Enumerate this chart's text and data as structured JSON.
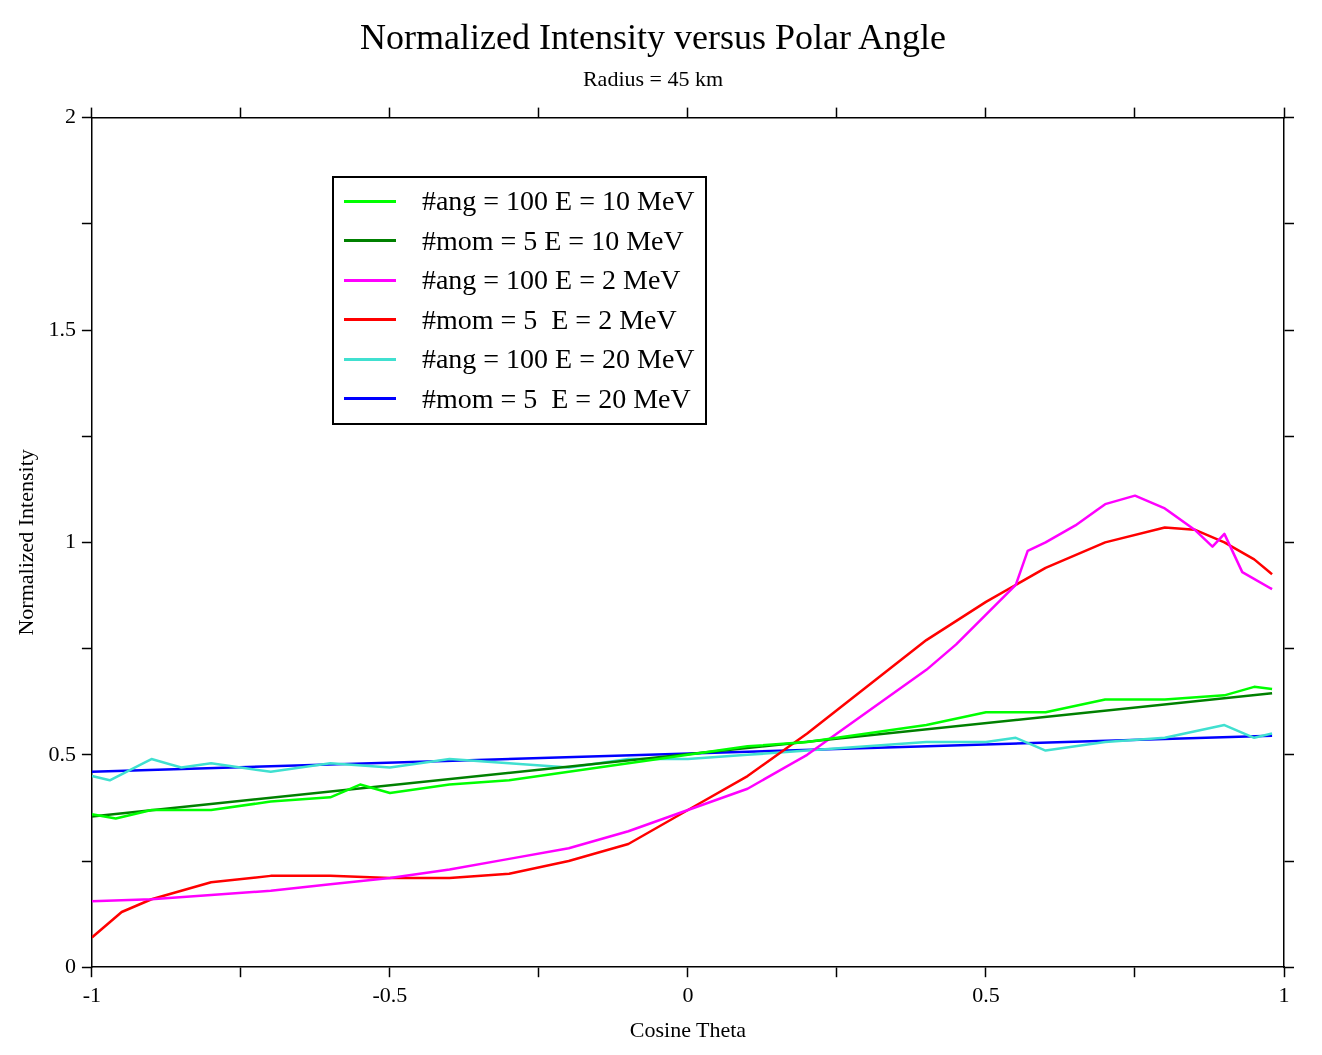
{
  "chart_data": {
    "type": "line",
    "title": "Normalized Intensity versus Polar Angle",
    "subtitle": "Radius = 45 km",
    "xlabel": "Cosine Theta",
    "ylabel": "Normalized Intensity",
    "xlim": [
      -1,
      1
    ],
    "ylim": [
      0,
      2
    ],
    "xticks": [
      -1,
      {
        "value": -0.75,
        "label": null
      },
      -0.5,
      {
        "value": -0.25,
        "label": null
      },
      0,
      {
        "value": 0.25,
        "label": null
      },
      0.5,
      {
        "value": 0.75,
        "label": null
      },
      1
    ],
    "yticks": [
      0,
      {
        "value": 0.25,
        "label": null
      },
      0.5,
      {
        "value": 0.75,
        "label": null
      },
      1,
      {
        "value": 1.25,
        "label": null
      },
      1.5,
      {
        "value": 1.75,
        "label": null
      },
      2
    ],
    "grid": false,
    "legend": "top left",
    "marker": "none",
    "line_style": "solid",
    "series": [
      {
        "name": "#ang = 100 E = 10 MeV",
        "color": "#00ff00",
        "x": [
          -1,
          -0.96,
          -0.9,
          -0.8,
          -0.7,
          -0.6,
          -0.55,
          -0.5,
          -0.4,
          -0.3,
          -0.2,
          -0.1,
          0,
          0.1,
          0.2,
          0.3,
          0.4,
          0.5,
          0.6,
          0.7,
          0.8,
          0.9,
          0.95,
          0.98
        ],
        "values": [
          0.36,
          0.35,
          0.37,
          0.37,
          0.39,
          0.4,
          0.43,
          0.41,
          0.43,
          0.44,
          0.46,
          0.48,
          0.5,
          0.52,
          0.53,
          0.55,
          0.57,
          0.6,
          0.6,
          0.63,
          0.63,
          0.64,
          0.66,
          0.655
        ]
      },
      {
        "name": "#mom = 5 E = 10 MeV",
        "color": "#008000",
        "x": [
          -1,
          0.98
        ],
        "values": [
          0.355,
          0.645
        ]
      },
      {
        "name": "#ang = 100 E = 2 MeV",
        "color": "#ff00ff",
        "x": [
          -1,
          -0.9,
          -0.8,
          -0.7,
          -0.6,
          -0.5,
          -0.4,
          -0.3,
          -0.2,
          -0.1,
          0,
          0.1,
          0.2,
          0.3,
          0.4,
          0.45,
          0.5,
          0.55,
          0.57,
          0.6,
          0.65,
          0.7,
          0.75,
          0.8,
          0.85,
          0.88,
          0.9,
          0.93,
          0.98
        ],
        "values": [
          0.155,
          0.16,
          0.17,
          0.18,
          0.195,
          0.21,
          0.23,
          0.255,
          0.28,
          0.32,
          0.37,
          0.42,
          0.5,
          0.6,
          0.7,
          0.76,
          0.83,
          0.9,
          0.98,
          1.0,
          1.04,
          1.09,
          1.11,
          1.08,
          1.03,
          0.99,
          1.02,
          0.93,
          0.89
        ]
      },
      {
        "name": "#mom = 5  E = 2 MeV",
        "color": "#ff0000",
        "x": [
          -1,
          -0.95,
          -0.9,
          -0.8,
          -0.7,
          -0.6,
          -0.5,
          -0.4,
          -0.3,
          -0.2,
          -0.1,
          0,
          0.1,
          0.2,
          0.3,
          0.4,
          0.5,
          0.6,
          0.7,
          0.8,
          0.85,
          0.9,
          0.95,
          0.98
        ],
        "values": [
          0.07,
          0.13,
          0.16,
          0.2,
          0.215,
          0.215,
          0.21,
          0.21,
          0.22,
          0.25,
          0.29,
          0.37,
          0.45,
          0.55,
          0.66,
          0.77,
          0.86,
          0.94,
          1.0,
          1.035,
          1.03,
          1.0,
          0.96,
          0.925
        ]
      },
      {
        "name": "#ang = 100 E = 20 MeV",
        "color": "#40e0d0",
        "x": [
          -1,
          -0.97,
          -0.9,
          -0.85,
          -0.8,
          -0.7,
          -0.6,
          -0.5,
          -0.4,
          -0.3,
          -0.2,
          -0.1,
          0,
          0.1,
          0.2,
          0.3,
          0.4,
          0.5,
          0.55,
          0.6,
          0.7,
          0.8,
          0.9,
          0.95,
          0.98
        ],
        "values": [
          0.45,
          0.44,
          0.49,
          0.47,
          0.48,
          0.46,
          0.48,
          0.47,
          0.49,
          0.48,
          0.47,
          0.49,
          0.49,
          0.5,
          0.51,
          0.52,
          0.53,
          0.53,
          0.54,
          0.51,
          0.53,
          0.54,
          0.57,
          0.54,
          0.55
        ]
      },
      {
        "name": "#mom = 5  E = 20 MeV",
        "color": "#0000ff",
        "x": [
          -1,
          0.98
        ],
        "values": [
          0.46,
          0.545
        ]
      }
    ]
  }
}
